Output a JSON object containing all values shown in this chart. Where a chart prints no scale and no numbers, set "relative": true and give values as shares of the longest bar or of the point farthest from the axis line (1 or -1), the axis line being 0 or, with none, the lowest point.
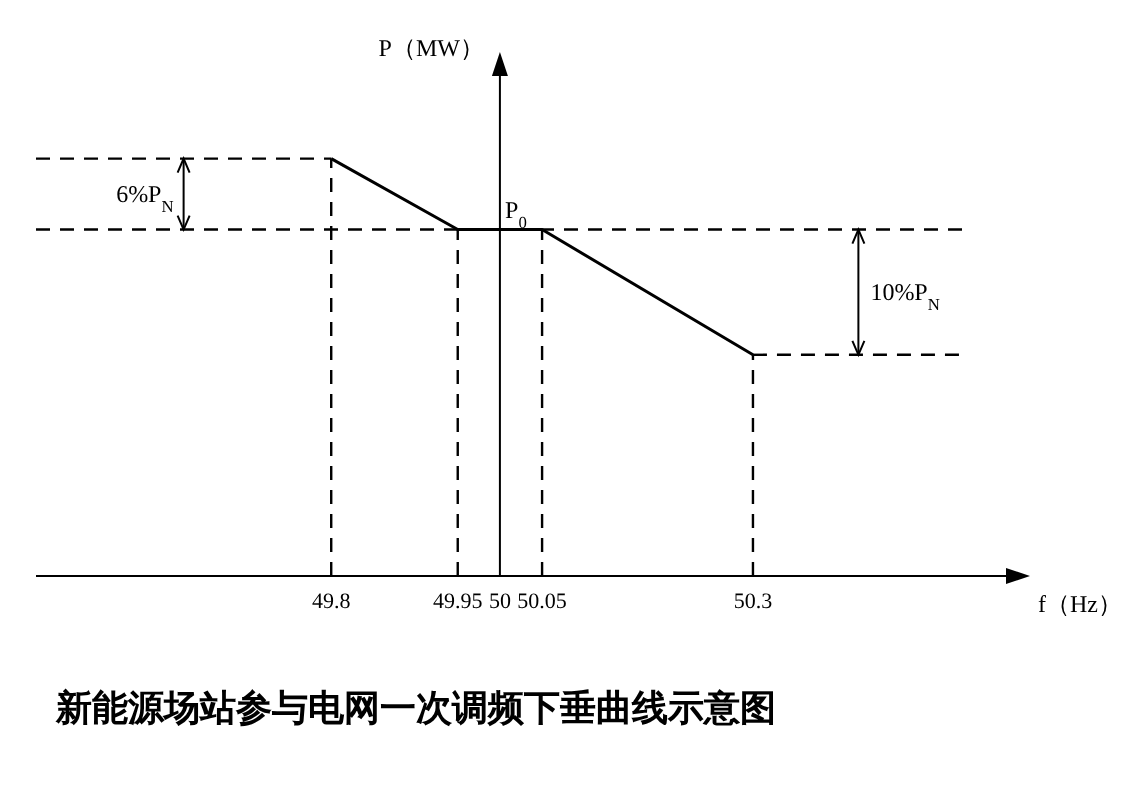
{
  "chart_data": {
    "type": "line",
    "relative": true,
    "title": "新能源场站参与电网一次调频下垂曲线示意图",
    "xlabel": "f（Hz）",
    "ylabel": "P（MW）",
    "xlim": [
      49.45,
      50.6
    ],
    "xticks": [
      49.8,
      49.95,
      50,
      50.05,
      50.3
    ],
    "marker": "none",
    "ref_lines": [
      {
        "axis": "x",
        "value": 50,
        "color": "#000000",
        "line_style": "solid"
      }
    ],
    "series": [
      {
        "color": "#000000",
        "line_style": "solid",
        "x": [
          49.8,
          49.95,
          50.05,
          50.3
        ],
        "values": [
          1,
          0.83,
          0.83,
          0.53
        ]
      },
      {
        "color": "#000000",
        "line_style": "dashed",
        "x": [
          49.45,
          49.8
        ],
        "values": [
          1,
          1
        ]
      },
      {
        "color": "#000000",
        "line_style": "dashed",
        "x": [
          49.45,
          50.55
        ],
        "values": [
          0.83,
          0.83
        ]
      },
      {
        "color": "#000000",
        "line_style": "dashed",
        "x": [
          50.3,
          50.55
        ],
        "values": [
          0.53,
          0.53
        ]
      },
      {
        "color": "#000000",
        "line_style": "dashed",
        "x": [
          49.8,
          49.8
        ],
        "values": [
          0,
          1
        ]
      },
      {
        "color": "#000000",
        "line_style": "dashed",
        "x": [
          49.95,
          49.95
        ],
        "values": [
          0,
          0.83
        ]
      },
      {
        "color": "#000000",
        "line_style": "dashed",
        "x": [
          50.05,
          50.05
        ],
        "values": [
          0,
          0.83
        ]
      },
      {
        "color": "#000000",
        "line_style": "dashed",
        "x": [
          50.3,
          50.3
        ],
        "values": [
          0,
          0.53
        ]
      }
    ],
    "annotations": [
      "6%P$_{N}$",
      "P$_{0}$",
      "10%P$_{N}$"
    ]
  }
}
